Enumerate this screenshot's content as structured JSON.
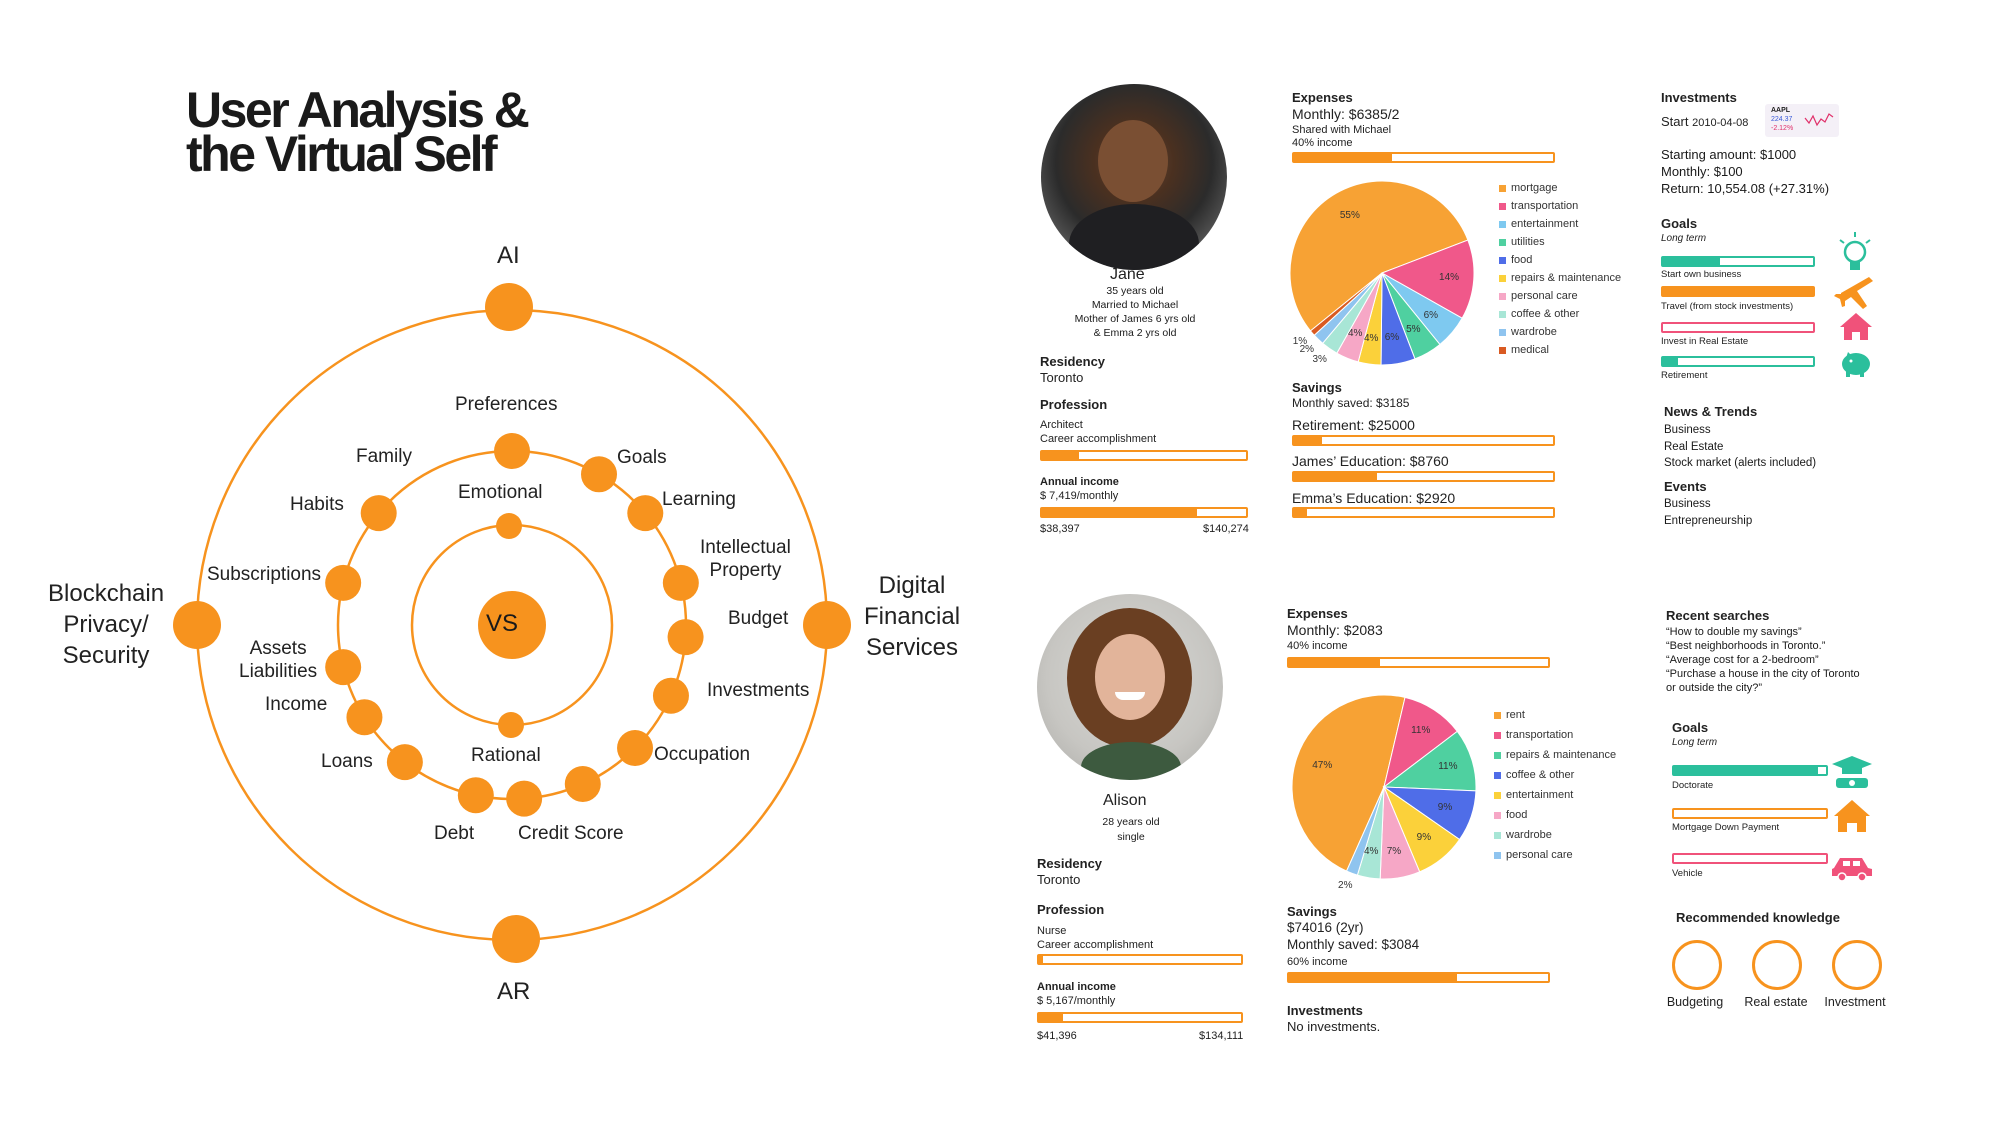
{
  "title": {
    "line1": "User Analysis &",
    "line2": "the Virtual Self"
  },
  "diagram": {
    "outer": {
      "top": "AI",
      "bottom": "AR",
      "left": "Blockchain\nPrivacy/\nSecurity",
      "right": "Digital\nFinancial\nServices"
    },
    "center": "VS",
    "emotional": "Emotional",
    "rational": "Rational",
    "ring_items": [
      "Preferences",
      "Goals",
      "Learning",
      "Intellectual\nProperty",
      "Budget",
      "Investments",
      "Occupation",
      "Credit Score",
      "Debt",
      "Loans",
      "Income",
      "Assets\nLiabilities",
      "Subscriptions",
      "Habits",
      "Family"
    ]
  },
  "jane": {
    "name": "Jane",
    "details": [
      "35 years old",
      "Married to Michael",
      "Mother of James 6 yrs old",
      "& Emma 2 yrs old"
    ],
    "residency_label": "Residency",
    "residency": "Toronto",
    "profession_label": "Profession",
    "profession": "Architect",
    "profession_note": "Career accomplishment",
    "profession_level": 0.18,
    "income_label": "Annual income",
    "income_monthly": "$ 7,419/monthly",
    "income_low": "$38,397",
    "income_high": "$140,274",
    "income_level": 0.76,
    "expenses_label": "Expenses",
    "expenses_monthly": "Monthly: $6385/2",
    "expenses_shared": "Shared with Michael",
    "expenses_pct": "40% income",
    "expenses_level": 0.38,
    "pie": [
      {
        "label": "mortgage",
        "pct": 55,
        "color": "#f7a234"
      },
      {
        "label": "transportation",
        "pct": 14,
        "color": "#f0588a"
      },
      {
        "label": "entertainment",
        "pct": 6,
        "color": "#7ec9f0"
      },
      {
        "label": "utilities",
        "pct": 5,
        "color": "#4fd0a0"
      },
      {
        "label": "food",
        "pct": 6,
        "color": "#4f6de8"
      },
      {
        "label": "repairs & maintenance",
        "pct": 4,
        "color": "#fbd13a"
      },
      {
        "label": "personal care",
        "pct": 4,
        "color": "#f6a7c6"
      },
      {
        "label": "coffee & other",
        "pct": 3,
        "color": "#a8e6d6"
      },
      {
        "label": "wardrobe",
        "pct": 2,
        "color": "#8fc4ef"
      },
      {
        "label": "medical",
        "pct": 1,
        "color": "#d95a22"
      }
    ],
    "pie_labels": [
      "55%",
      "14%",
      "6%",
      "5%",
      "6%",
      "4%",
      "4%",
      "3%",
      "2%",
      "1%"
    ],
    "savings_label": "Savings",
    "savings_monthly": "Monthly saved: $3185",
    "savings": [
      {
        "label": "Retirement: $25000",
        "level": 0.11
      },
      {
        "label": "James’ Education: $8760",
        "level": 0.32
      },
      {
        "label": "Emma’s Education: $2920",
        "level": 0.05
      }
    ],
    "investments_label": "Investments",
    "invest_start": "Start",
    "invest_date": "2010-04-08",
    "stock": {
      "ticker": "AAPL",
      "price": "224.37",
      "change": "-2.12%"
    },
    "invest_lines": [
      "Starting amount: $1000",
      "Monthly: $100",
      "Return: 10,554.08 (+27.31%)"
    ],
    "goals_label": "Goals",
    "goals_sub": "Long term",
    "goals": [
      {
        "label": "Start own business",
        "level": 0.38,
        "color": "teal",
        "icon": "lightbulb-icon"
      },
      {
        "label": "Travel (from stock investments)",
        "level": 1.0,
        "color": "orange",
        "icon": "airplane-icon"
      },
      {
        "label": "Invest in Real Estate",
        "level": 0.0,
        "color": "pink",
        "icon": "house-icon"
      },
      {
        "label": "Retirement",
        "level": 0.1,
        "color": "teal",
        "icon": "piggy-bank-icon"
      }
    ],
    "news_label": "News & Trends",
    "news": [
      "Business",
      "Real Estate",
      "Stock market (alerts included)"
    ],
    "events_label": "Events",
    "events": [
      "Business",
      "Entrepreneurship"
    ]
  },
  "alison": {
    "name": "Alison",
    "details": [
      "28 years old",
      "single"
    ],
    "residency_label": "Residency",
    "residency": "Toronto",
    "profession_label": "Profession",
    "profession": "Nurse",
    "profession_note": "Career accomplishment",
    "profession_level": 0.02,
    "income_label": "Annual income",
    "income_monthly": "$ 5,167/monthly",
    "income_low": "$41,396",
    "income_high": "$134,111",
    "income_level": 0.12,
    "expenses_label": "Expenses",
    "expenses_monthly": "Monthly: $2083",
    "expenses_pct": "40% income",
    "expenses_level": 0.35,
    "pie": [
      {
        "label": "rent",
        "pct": 47,
        "color": "#f7a234"
      },
      {
        "label": "transportation",
        "pct": 11,
        "color": "#f0588a"
      },
      {
        "label": "repairs & maintenance",
        "pct": 11,
        "color": "#4fd0a0"
      },
      {
        "label": "coffee & other",
        "pct": 9,
        "color": "#4f6de8"
      },
      {
        "label": "entertainment",
        "pct": 9,
        "color": "#fbd13a"
      },
      {
        "label": "food",
        "pct": 7,
        "color": "#f6a7c6"
      },
      {
        "label": "wardrobe",
        "pct": 4,
        "color": "#a8e6d6"
      },
      {
        "label": "personal care",
        "pct": 2,
        "color": "#8fc4ef"
      }
    ],
    "pie_labels": [
      "47%",
      "11%",
      "11%",
      "9%",
      "9%",
      "7%",
      "4%",
      "2%"
    ],
    "savings_label": "Savings",
    "savings_total": "$74016 (2yr)",
    "savings_monthly": "Monthly saved: $3084",
    "savings_pct": "60% income",
    "savings_level": 0.65,
    "investments_label": "Investments",
    "investments": "No investments.",
    "searches_label": "Recent searches",
    "searches": [
      "“How to double my savings”",
      "“Best neighborhoods in Toronto.”",
      "“Average cost for a 2-bedroom”",
      "“Purchase a house in the city of Toronto",
      "or outside the city?”"
    ],
    "goals_label": "Goals",
    "goals_sub": "Long term",
    "goals": [
      {
        "label": "Doctorate",
        "level": 0.95,
        "color": "teal",
        "icon": "graduation-icon"
      },
      {
        "label": "Mortgage Down Payment",
        "level": 0.0,
        "color": "orange",
        "icon": "house-icon"
      },
      {
        "label": "Vehicle",
        "level": 0.0,
        "color": "pink",
        "icon": "car-icon"
      }
    ],
    "knowledge_label": "Recommended knowledge",
    "knowledge": [
      "Budgeting",
      "Real estate",
      "Investment"
    ]
  }
}
